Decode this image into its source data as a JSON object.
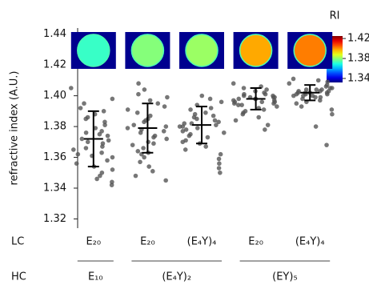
{
  "chart_data": {
    "type": "strip",
    "y_label": "refractive index (A.U.)",
    "ylim": [
      1.314,
      1.444
    ],
    "yticks": [
      1.32,
      1.34,
      1.36,
      1.38,
      {
        "value": 1.4,
        "label": "1.40"
      },
      1.42,
      1.44
    ],
    "row_labels": [
      "LC",
      "HC"
    ],
    "categories": [
      "E₂₀",
      "E₂₀",
      "(E₄Y)₄",
      "E₂₀",
      "(E₄Y)₄"
    ],
    "hc_groups": [
      {
        "label": "E₁₀",
        "count": 1
      },
      {
        "label": "(E₄Y)₂",
        "count": 2
      },
      {
        "label": "(EY)₅",
        "count": 2
      }
    ],
    "point_color": "#555555",
    "means": [
      1.372,
      1.379,
      1.381,
      1.398,
      1.402
    ],
    "sd": [
      0.018,
      0.016,
      0.012,
      0.007,
      0.005
    ],
    "points": [
      [
        1.405,
        1.398,
        1.395,
        1.392,
        1.39,
        1.388,
        1.385,
        1.383,
        1.381,
        1.379,
        1.377,
        1.375,
        1.374,
        1.372,
        1.37,
        1.369,
        1.367,
        1.365,
        1.363,
        1.361,
        1.36,
        1.358,
        1.356,
        1.354,
        1.352,
        1.35,
        1.348,
        1.346,
        1.344,
        1.342,
        1.386,
        1.376,
        1.371,
        1.366,
        1.362
      ],
      [
        1.408,
        1.404,
        1.401,
        1.399,
        1.397,
        1.395,
        1.393,
        1.391,
        1.389,
        1.387,
        1.385,
        1.383,
        1.381,
        1.38,
        1.379,
        1.378,
        1.376,
        1.374,
        1.372,
        1.37,
        1.368,
        1.366,
        1.364,
        1.362,
        1.36,
        1.357,
        1.354,
        1.351,
        1.348,
        1.345,
        1.384,
        1.377,
        1.373,
        1.369,
        1.363
      ],
      [
        1.4,
        1.398,
        1.396,
        1.394,
        1.392,
        1.391,
        1.389,
        1.388,
        1.386,
        1.385,
        1.384,
        1.383,
        1.382,
        1.381,
        1.38,
        1.379,
        1.378,
        1.377,
        1.376,
        1.374,
        1.373,
        1.371,
        1.369,
        1.367,
        1.365,
        1.362,
        1.359,
        1.356,
        1.353,
        1.35,
        1.387,
        1.382,
        1.38,
        1.375,
        1.37
      ],
      [
        1.408,
        1.406,
        1.405,
        1.404,
        1.403,
        1.402,
        1.401,
        1.4,
        1.4,
        1.399,
        1.399,
        1.398,
        1.398,
        1.397,
        1.397,
        1.396,
        1.396,
        1.395,
        1.395,
        1.394,
        1.393,
        1.392,
        1.391,
        1.39,
        1.389,
        1.388,
        1.386,
        1.384,
        1.381,
        1.378,
        1.401,
        1.398,
        1.396,
        1.394,
        1.399
      ],
      [
        1.411,
        1.41,
        1.409,
        1.408,
        1.407,
        1.406,
        1.405,
        1.405,
        1.404,
        1.404,
        1.403,
        1.403,
        1.402,
        1.402,
        1.402,
        1.401,
        1.401,
        1.4,
        1.4,
        1.399,
        1.399,
        1.398,
        1.397,
        1.396,
        1.395,
        1.393,
        1.391,
        1.388,
        1.38,
        1.368,
        1.403,
        1.401,
        1.404,
        1.4,
        1.402
      ]
    ],
    "colorbar": {
      "title": "RI",
      "lim": [
        1.332,
        1.425
      ],
      "ticks": [
        1.42,
        1.38,
        1.34
      ]
    }
  }
}
